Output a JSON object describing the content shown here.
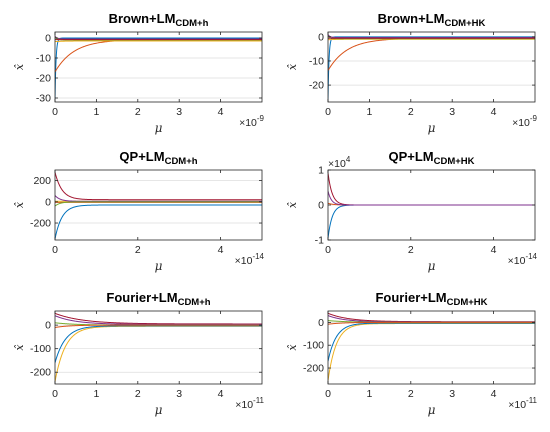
{
  "chart_data": [
    {
      "type": "line",
      "title": {
        "main": "Brown+LM",
        "sub": "CDM+h"
      },
      "xlabel": "μ",
      "ylabel": "x̂",
      "x_exponent": {
        "base": "×10",
        "exp": "-9"
      },
      "xlim": [
        0,
        5
      ],
      "ylim": [
        -32,
        3
      ],
      "xticks": [
        0,
        1,
        2,
        3,
        4
      ],
      "yticks": [
        0,
        -10,
        -20,
        -30
      ],
      "ytick_labels": [
        "0",
        "-10",
        "-20",
        "-30"
      ],
      "y_exponent": null,
      "series": [
        {
          "color": "#0072BD",
          "start": -31,
          "end": 0,
          "k": 40
        },
        {
          "color": "#D95319",
          "start": -17,
          "end": -0.8,
          "k": 2.2
        },
        {
          "color": "#EDB120",
          "start": -1.8,
          "end": -1.5,
          "k": 5
        },
        {
          "color": "#7E2F8E",
          "start": 0.9,
          "end": -0.5,
          "k": 20
        },
        {
          "color": "#77AC30",
          "start": 0.5,
          "end": -1.0,
          "k": 20
        },
        {
          "color": "#A2142F",
          "start": -0.8,
          "end": -0.8,
          "k": 20
        }
      ]
    },
    {
      "type": "line",
      "title": {
        "main": "Brown+LM",
        "sub": "CDM+HK"
      },
      "xlabel": "μ",
      "ylabel": "x̂",
      "x_exponent": {
        "base": "×10",
        "exp": "-9"
      },
      "xlim": [
        0,
        5
      ],
      "ylim": [
        -27,
        2
      ],
      "xticks": [
        0,
        1,
        2,
        3,
        4
      ],
      "yticks": [
        0,
        -10,
        -20
      ],
      "ytick_labels": [
        "0",
        "-10",
        "-20"
      ],
      "y_exponent": null,
      "series": [
        {
          "color": "#0072BD",
          "start": -26,
          "end": 0,
          "k": 40
        },
        {
          "color": "#D95319",
          "start": -14,
          "end": -0.6,
          "k": 2.2
        },
        {
          "color": "#EDB120",
          "start": -1.2,
          "end": -1.0,
          "k": 5
        },
        {
          "color": "#7E2F8E",
          "start": 0.9,
          "end": -0.3,
          "k": 20
        },
        {
          "color": "#77AC30",
          "start": 0.4,
          "end": -0.8,
          "k": 20
        },
        {
          "color": "#A2142F",
          "start": -0.6,
          "end": -0.6,
          "k": 20
        }
      ]
    },
    {
      "type": "line",
      "title": {
        "main": "QP+LM",
        "sub": "CDM+h"
      },
      "xlabel": "μ",
      "ylabel": "x̂",
      "x_exponent": {
        "base": "×10",
        "exp": "-14"
      },
      "xlim": [
        0,
        5
      ],
      "ylim": [
        -360,
        300
      ],
      "xticks": [
        0,
        2,
        4
      ],
      "yticks": [
        200,
        0,
        -200
      ],
      "ytick_labels": [
        "200",
        "0",
        "-200"
      ],
      "y_exponent": null,
      "series": [
        {
          "color": "#0072BD",
          "start": -350,
          "end": -30,
          "k": 6
        },
        {
          "color": "#A2142F",
          "start": 280,
          "end": 20,
          "k": 6
        },
        {
          "color": "#D95319",
          "start": -5,
          "end": -5,
          "k": 5
        },
        {
          "color": "#EDB120",
          "start": 5,
          "end": 5,
          "k": 5
        },
        {
          "color": "#7E2F8E",
          "start": 60,
          "end": 5,
          "k": 8
        },
        {
          "color": "#77AC30",
          "start": -40,
          "end": 0,
          "k": 8
        }
      ]
    },
    {
      "type": "line",
      "title": {
        "main": "QP+LM",
        "sub": "CDM+HK"
      },
      "xlabel": "μ",
      "ylabel": "x̂",
      "x_exponent": {
        "base": "×10",
        "exp": "-14"
      },
      "xlim": [
        0,
        5
      ],
      "ylim": [
        -1,
        1
      ],
      "xticks": [
        0,
        2,
        4
      ],
      "yticks": [
        1,
        0,
        -1
      ],
      "ytick_labels": [
        "1",
        "0",
        "-1"
      ],
      "y_exponent": {
        "base": "×10",
        "exp": "4"
      },
      "series": [
        {
          "color": "#0072BD",
          "start": -0.95,
          "end": 0,
          "k": 10
        },
        {
          "color": "#A2142F",
          "start": 0.92,
          "end": 0,
          "k": 10
        },
        {
          "color": "#D95319",
          "start": 0.05,
          "end": 0,
          "k": 8
        },
        {
          "color": "#7E2F8E",
          "start": 0.4,
          "end": 0,
          "k": 12
        }
      ]
    },
    {
      "type": "line",
      "title": {
        "main": "Fourier+LM",
        "sub": "CDM+h"
      },
      "xlabel": "μ",
      "ylabel": "x̂",
      "x_exponent": {
        "base": "×10",
        "exp": "-11"
      },
      "xlim": [
        0,
        5
      ],
      "ylim": [
        -250,
        60
      ],
      "xticks": [
        0,
        1,
        2,
        3,
        4
      ],
      "yticks": [
        0,
        -100,
        -200
      ],
      "ytick_labels": [
        "0",
        "-100",
        "-200"
      ],
      "y_exponent": null,
      "series": [
        {
          "color": "#EDB120",
          "start": -240,
          "end": -5,
          "k": 4
        },
        {
          "color": "#0072BD",
          "start": -160,
          "end": -3,
          "k": 4
        },
        {
          "color": "#A2142F",
          "start": 50,
          "end": 5,
          "k": 1.5
        },
        {
          "color": "#7E2F8E",
          "start": 40,
          "end": 3,
          "k": 2
        },
        {
          "color": "#77AC30",
          "start": 10,
          "end": 0,
          "k": 2
        },
        {
          "color": "#D95319",
          "start": -10,
          "end": 0,
          "k": 3
        }
      ]
    },
    {
      "type": "line",
      "title": {
        "main": "Fourier+LM",
        "sub": "CDM+HK"
      },
      "xlabel": "μ",
      "ylabel": "x̂",
      "x_exponent": {
        "base": "×10",
        "exp": "-11"
      },
      "xlim": [
        0,
        5
      ],
      "ylim": [
        -270,
        50
      ],
      "xticks": [
        0,
        1,
        2,
        3,
        4
      ],
      "yticks": [
        0,
        -100,
        -200
      ],
      "ytick_labels": [
        "0",
        "-100",
        "-200"
      ],
      "y_exponent": null,
      "series": [
        {
          "color": "#EDB120",
          "start": -255,
          "end": -5,
          "k": 5
        },
        {
          "color": "#0072BD",
          "start": -170,
          "end": -3,
          "k": 5
        },
        {
          "color": "#A2142F",
          "start": 40,
          "end": 3,
          "k": 2
        },
        {
          "color": "#7E2F8E",
          "start": 30,
          "end": 2,
          "k": 2.5
        },
        {
          "color": "#77AC30",
          "start": 8,
          "end": 0,
          "k": 2
        },
        {
          "color": "#D95319",
          "start": -8,
          "end": 0,
          "k": 3
        }
      ]
    }
  ]
}
